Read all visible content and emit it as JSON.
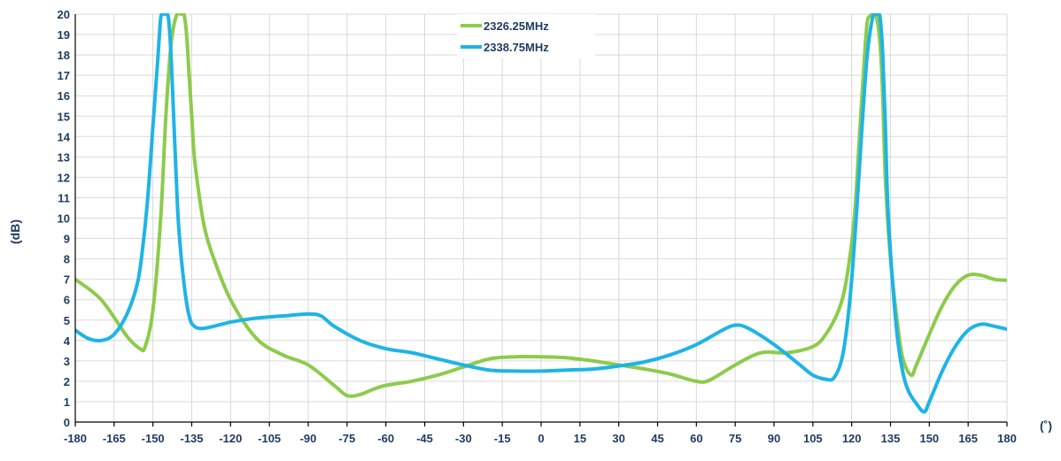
{
  "chart_data": {
    "type": "line",
    "title": "",
    "xlabel": "(˚)",
    "ylabel": "(dB)",
    "xlim": [
      -180,
      180
    ],
    "ylim": [
      0,
      20
    ],
    "x_ticks": [
      -180,
      -165,
      -150,
      -135,
      -120,
      -105,
      -90,
      -75,
      -60,
      -45,
      -30,
      -15,
      0,
      15,
      30,
      45,
      60,
      75,
      90,
      105,
      120,
      135,
      150,
      165,
      180
    ],
    "y_ticks": [
      0,
      1,
      2,
      3,
      4,
      5,
      6,
      7,
      8,
      9,
      10,
      11,
      12,
      13,
      14,
      15,
      16,
      17,
      18,
      19,
      20
    ],
    "grid": true,
    "legend_position": "top-center",
    "series": [
      {
        "name": "2326.25MHz",
        "color": "#8DCB4B",
        "x": [
          -180,
          -170,
          -160,
          -155,
          -153,
          -150,
          -147,
          -145,
          -143,
          -141,
          -139,
          -138,
          -137,
          -136,
          -135,
          -134,
          -132,
          -130,
          -127,
          -120,
          -110,
          -100,
          -90,
          -80,
          -75,
          -70,
          -65,
          -60,
          -50,
          -40,
          -30,
          -20,
          -10,
          0,
          10,
          20,
          30,
          40,
          50,
          60,
          65,
          75,
          85,
          95,
          105,
          110,
          115,
          118,
          121,
          123,
          125,
          126,
          127,
          128,
          129,
          130,
          131,
          132,
          133,
          135,
          138,
          140,
          143,
          145,
          150,
          155,
          160,
          165,
          170,
          175,
          180
        ],
        "y": [
          7.0,
          6.0,
          4.2,
          3.6,
          3.7,
          5.5,
          10.0,
          15.0,
          18.5,
          19.9,
          20.0,
          20.0,
          19.0,
          17.0,
          15.0,
          13.0,
          11.0,
          9.5,
          8.2,
          6.0,
          4.1,
          3.3,
          2.8,
          1.8,
          1.3,
          1.35,
          1.6,
          1.8,
          2.0,
          2.3,
          2.7,
          3.1,
          3.2,
          3.2,
          3.15,
          3.0,
          2.8,
          2.6,
          2.35,
          2.0,
          2.05,
          2.8,
          3.4,
          3.4,
          3.7,
          4.3,
          5.5,
          7.0,
          10.0,
          14.0,
          18.0,
          19.6,
          19.9,
          20.0,
          20.0,
          19.6,
          18.5,
          16.0,
          12.0,
          8.0,
          4.5,
          3.0,
          2.3,
          2.8,
          4.3,
          5.7,
          6.7,
          7.2,
          7.2,
          7.0,
          6.95
        ]
      },
      {
        "name": "2338.75MHz",
        "color": "#1EB4E6",
        "x": [
          -180,
          -175,
          -170,
          -165,
          -160,
          -156,
          -154,
          -152,
          -150,
          -148,
          -147,
          -146,
          -145,
          -144,
          -143,
          -142,
          -141,
          -140,
          -138,
          -136,
          -134,
          -130,
          -120,
          -110,
          -100,
          -90,
          -85,
          -80,
          -70,
          -60,
          -50,
          -40,
          -30,
          -20,
          -10,
          0,
          10,
          20,
          30,
          40,
          50,
          60,
          70,
          75,
          80,
          90,
          100,
          105,
          110,
          113,
          116,
          118,
          120,
          122,
          124,
          126,
          128,
          129,
          130,
          131,
          132,
          133,
          134,
          136,
          138,
          140,
          142,
          145,
          148,
          150,
          155,
          160,
          165,
          170,
          175,
          180
        ],
        "y": [
          4.5,
          4.1,
          4.0,
          4.3,
          5.3,
          6.8,
          8.5,
          11.0,
          14.5,
          18.0,
          19.8,
          20.0,
          20.0,
          19.8,
          18.0,
          15.0,
          12.0,
          9.5,
          6.8,
          5.2,
          4.7,
          4.6,
          4.9,
          5.1,
          5.2,
          5.3,
          5.2,
          4.7,
          4.0,
          3.6,
          3.4,
          3.1,
          2.8,
          2.55,
          2.5,
          2.5,
          2.55,
          2.6,
          2.75,
          2.95,
          3.3,
          3.8,
          4.5,
          4.75,
          4.6,
          3.8,
          2.8,
          2.3,
          2.1,
          2.15,
          3.0,
          4.5,
          7.0,
          10.5,
          14.5,
          18.0,
          19.8,
          20.0,
          20.0,
          19.8,
          18.0,
          14.5,
          10.5,
          6.5,
          3.8,
          2.3,
          1.5,
          0.9,
          0.5,
          1.0,
          2.5,
          3.7,
          4.5,
          4.8,
          4.7,
          4.55
        ]
      }
    ]
  }
}
